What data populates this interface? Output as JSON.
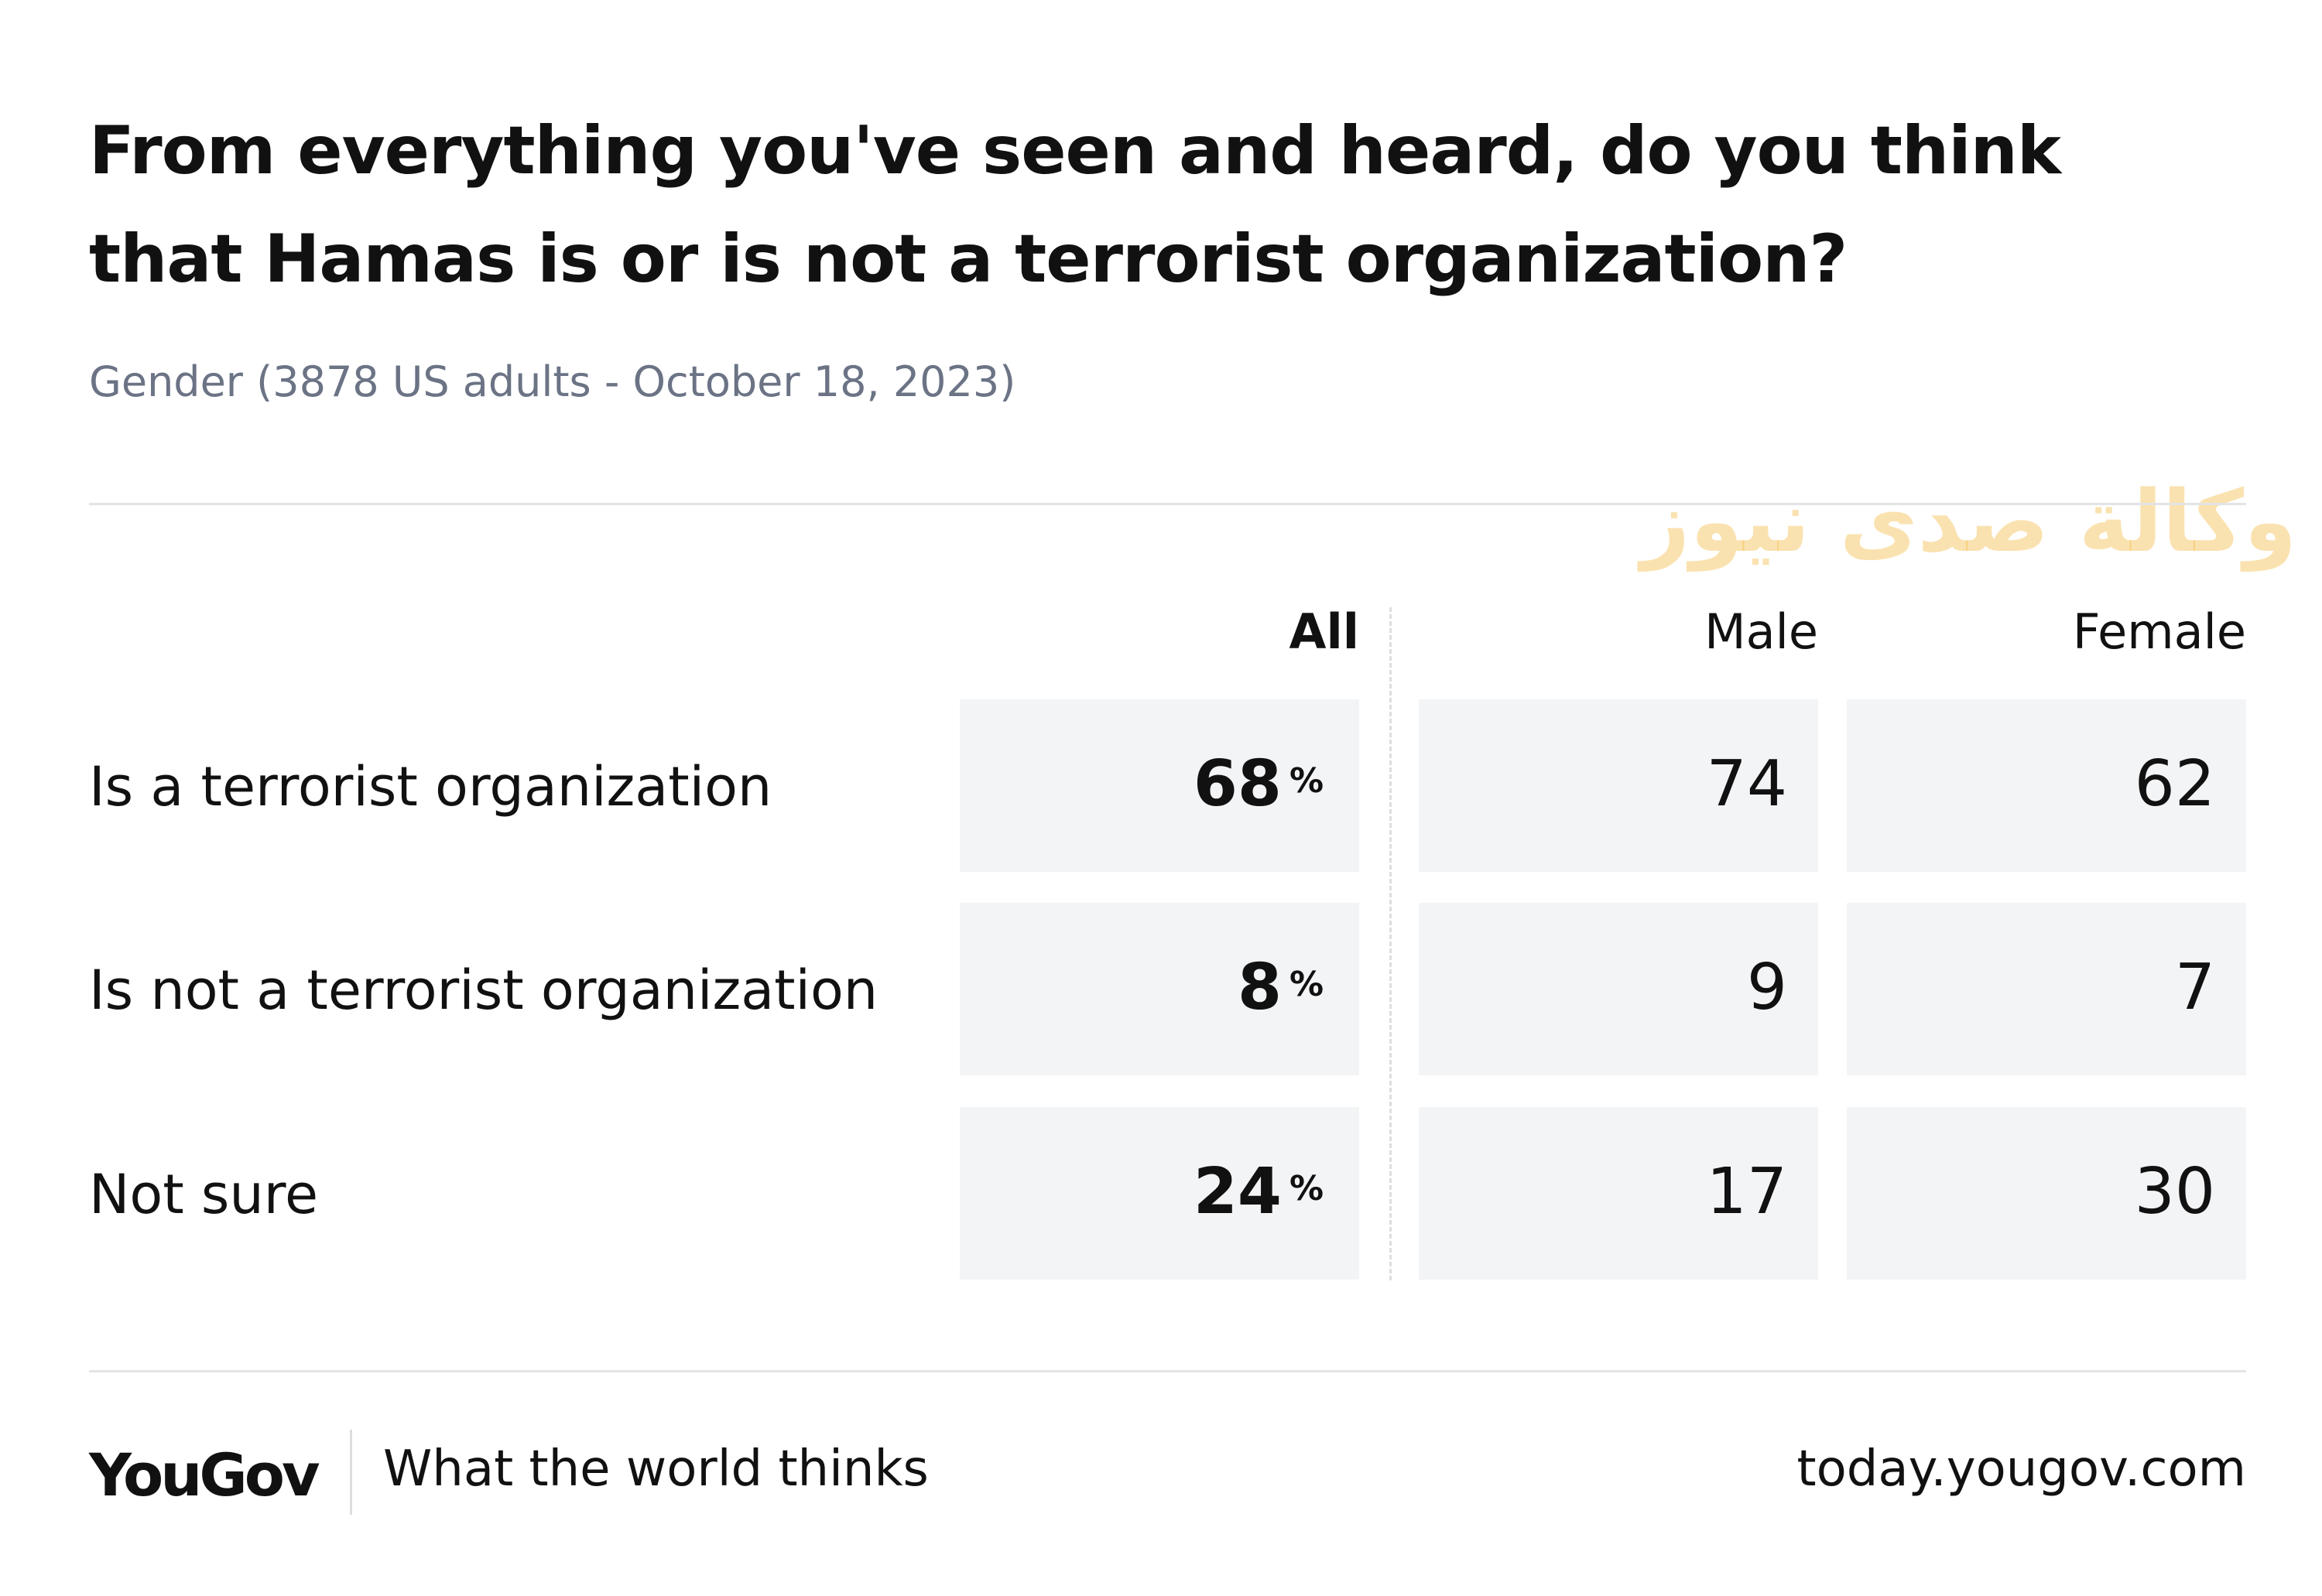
{
  "header": {
    "title": "From everything you've seen and heard, do you think that Hamas is or is not a terrorist organization?",
    "subtitle": "Gender (3878 US adults - October 18, 2023)"
  },
  "watermark": {
    "text": "وكالة صدى نيوز"
  },
  "table": {
    "columns": [
      "All",
      "Male",
      "Female"
    ],
    "unit": "%",
    "rows": [
      {
        "label": "Is a terrorist organization",
        "values": [
          68,
          74,
          62
        ]
      },
      {
        "label": "Is not a terrorist organization",
        "values": [
          8,
          9,
          7
        ]
      },
      {
        "label": "Not sure",
        "values": [
          24,
          17,
          30
        ]
      }
    ]
  },
  "footer": {
    "brand": "YouGov",
    "tagline": "What the world thinks",
    "url": "today.yougov.com"
  }
}
